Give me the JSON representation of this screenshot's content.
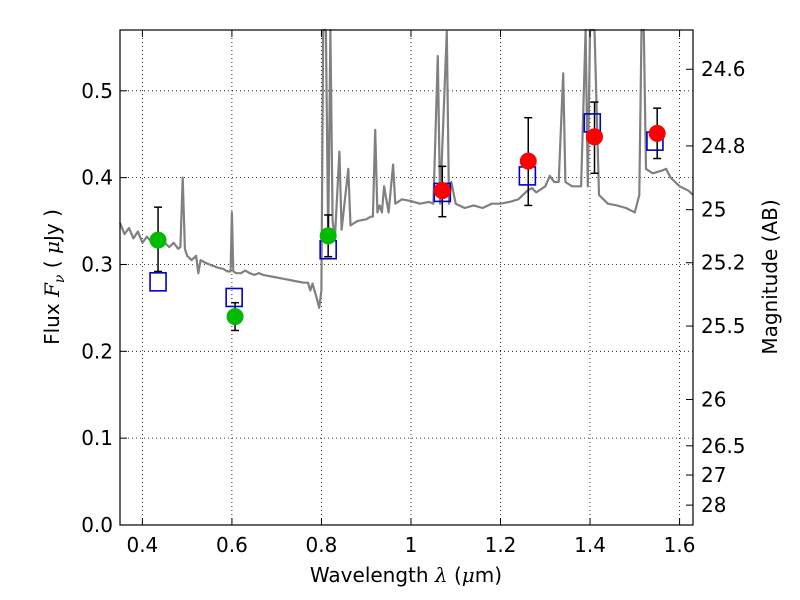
{
  "chart_data": {
    "type": "scatter",
    "xlabel": {
      "prefix": "Wavelength ",
      "symbol": "λ",
      "open": " (",
      "unit_symbol": "μ",
      "unit_rest": "m)"
    },
    "ylabel": {
      "prefix": "Flux ",
      "symbol": "F",
      "sub": "ν",
      "open": " ( ",
      "unit_symbol": "μ",
      "unit_rest": "Jy )"
    },
    "y2label": "Magnitude (AB)",
    "xlim": [
      0.35,
      1.63
    ],
    "ylim": [
      0.0,
      0.57
    ],
    "grid": true,
    "x_ticks": [
      0.4,
      0.6,
      0.8,
      1.0,
      1.2,
      1.4,
      1.6
    ],
    "x_tick_labels": [
      "0.4",
      "0.6",
      "0.8",
      "1",
      "1.2",
      "1.4",
      "1.6"
    ],
    "y_ticks": [
      0.0,
      0.1,
      0.2,
      0.3,
      0.4,
      0.5
    ],
    "y_tick_labels": [
      "0.0",
      "0.1",
      "0.2",
      "0.3",
      "0.4",
      "0.5"
    ],
    "mag_ticks": [
      24.6,
      24.8,
      25,
      25.2,
      25.5,
      26,
      26.5,
      27,
      28
    ],
    "mag_tick_labels": [
      "24.6",
      "24.8",
      "25",
      "25.2",
      "25.5",
      "26",
      "26.5",
      "27",
      "28"
    ],
    "colors": {
      "spectrum": "#808080",
      "model": "#0000cc",
      "green": "#00bb00",
      "red": "#ff0000",
      "errorbar": "#000000"
    },
    "series": [
      {
        "kind": "spectrum",
        "points": [
          [
            0.35,
            0.348
          ],
          [
            0.36,
            0.335
          ],
          [
            0.37,
            0.342
          ],
          [
            0.38,
            0.33
          ],
          [
            0.39,
            0.338
          ],
          [
            0.4,
            0.325
          ],
          [
            0.41,
            0.332
          ],
          [
            0.42,
            0.326
          ],
          [
            0.43,
            0.33
          ],
          [
            0.44,
            0.32
          ],
          [
            0.45,
            0.325
          ],
          [
            0.46,
            0.32
          ],
          [
            0.47,
            0.325
          ],
          [
            0.48,
            0.318
          ],
          [
            0.485,
            0.32
          ],
          [
            0.49,
            0.4
          ],
          [
            0.495,
            0.318
          ],
          [
            0.5,
            0.31
          ],
          [
            0.51,
            0.305
          ],
          [
            0.52,
            0.31
          ],
          [
            0.525,
            0.29
          ],
          [
            0.53,
            0.305
          ],
          [
            0.54,
            0.302
          ],
          [
            0.55,
            0.3
          ],
          [
            0.56,
            0.298
          ],
          [
            0.57,
            0.296
          ],
          [
            0.58,
            0.295
          ],
          [
            0.59,
            0.292
          ],
          [
            0.597,
            0.292
          ],
          [
            0.6,
            0.36
          ],
          [
            0.603,
            0.292
          ],
          [
            0.61,
            0.29
          ],
          [
            0.62,
            0.29
          ],
          [
            0.63,
            0.293
          ],
          [
            0.64,
            0.29
          ],
          [
            0.65,
            0.288
          ],
          [
            0.66,
            0.29
          ],
          [
            0.67,
            0.288
          ],
          [
            0.68,
            0.287
          ],
          [
            0.7,
            0.285
          ],
          [
            0.72,
            0.283
          ],
          [
            0.74,
            0.281
          ],
          [
            0.76,
            0.279
          ],
          [
            0.77,
            0.279
          ],
          [
            0.775,
            0.27
          ],
          [
            0.78,
            0.278
          ],
          [
            0.79,
            0.26
          ],
          [
            0.795,
            0.25
          ],
          [
            0.8,
            0.27
          ],
          [
            0.804,
            0.57
          ],
          [
            0.81,
            0.57
          ],
          [
            0.815,
            0.33
          ],
          [
            0.82,
            0.57
          ],
          [
            0.825,
            0.35
          ],
          [
            0.83,
            0.33
          ],
          [
            0.84,
            0.43
          ],
          [
            0.845,
            0.34
          ],
          [
            0.86,
            0.41
          ],
          [
            0.865,
            0.345
          ],
          [
            0.88,
            0.35
          ],
          [
            0.9,
            0.352
          ],
          [
            0.91,
            0.355
          ],
          [
            0.915,
            0.355
          ],
          [
            0.92,
            0.455
          ],
          [
            0.925,
            0.36
          ],
          [
            0.93,
            0.368
          ],
          [
            0.935,
            0.36
          ],
          [
            0.94,
            0.39
          ],
          [
            0.95,
            0.36
          ],
          [
            0.96,
            0.415
          ],
          [
            0.965,
            0.37
          ],
          [
            0.98,
            0.375
          ],
          [
            1.0,
            0.373
          ],
          [
            1.02,
            0.37
          ],
          [
            1.04,
            0.372
          ],
          [
            1.05,
            0.37
          ],
          [
            1.06,
            0.54
          ],
          [
            1.065,
            0.37
          ],
          [
            1.08,
            0.568
          ],
          [
            1.085,
            0.37
          ],
          [
            1.09,
            0.395
          ],
          [
            1.1,
            0.37
          ],
          [
            1.12,
            0.365
          ],
          [
            1.14,
            0.368
          ],
          [
            1.16,
            0.365
          ],
          [
            1.18,
            0.37
          ],
          [
            1.2,
            0.37
          ],
          [
            1.22,
            0.372
          ],
          [
            1.24,
            0.375
          ],
          [
            1.26,
            0.385
          ],
          [
            1.27,
            0.388
          ],
          [
            1.28,
            0.383
          ],
          [
            1.3,
            0.39
          ],
          [
            1.31,
            0.402
          ],
          [
            1.32,
            0.395
          ],
          [
            1.33,
            0.395
          ],
          [
            1.34,
            0.52
          ],
          [
            1.345,
            0.395
          ],
          [
            1.36,
            0.39
          ],
          [
            1.38,
            0.39
          ],
          [
            1.39,
            0.57
          ],
          [
            1.395,
            0.39
          ],
          [
            1.4,
            0.57
          ],
          [
            1.41,
            0.57
          ],
          [
            1.42,
            0.38
          ],
          [
            1.44,
            0.37
          ],
          [
            1.46,
            0.368
          ],
          [
            1.48,
            0.365
          ],
          [
            1.5,
            0.36
          ],
          [
            1.51,
            0.38
          ],
          [
            1.515,
            0.57
          ],
          [
            1.52,
            0.57
          ],
          [
            1.525,
            0.41
          ],
          [
            1.54,
            0.405
          ],
          [
            1.56,
            0.408
          ],
          [
            1.57,
            0.41
          ],
          [
            1.58,
            0.4
          ],
          [
            1.6,
            0.39
          ],
          [
            1.62,
            0.385
          ],
          [
            1.63,
            0.38
          ]
        ]
      },
      {
        "kind": "model-squares",
        "points": [
          [
            0.435,
            0.28
          ],
          [
            0.605,
            0.262
          ],
          [
            0.815,
            0.317
          ],
          [
            1.07,
            0.383
          ],
          [
            1.26,
            0.402
          ],
          [
            1.405,
            0.463
          ],
          [
            1.545,
            0.442
          ]
        ]
      },
      {
        "kind": "green-points",
        "points": [
          {
            "x": 0.435,
            "y": 0.328,
            "lo": 0.292,
            "hi": 0.366
          },
          {
            "x": 0.607,
            "y": 0.24,
            "lo": 0.224,
            "hi": 0.256
          },
          {
            "x": 0.815,
            "y": 0.333,
            "lo": 0.309,
            "hi": 0.357
          }
        ]
      },
      {
        "kind": "red-points",
        "points": [
          {
            "x": 1.07,
            "y": 0.385,
            "lo": 0.355,
            "hi": 0.413
          },
          {
            "x": 1.262,
            "y": 0.419,
            "lo": 0.368,
            "hi": 0.469
          },
          {
            "x": 1.41,
            "y": 0.447,
            "lo": 0.405,
            "hi": 0.487
          },
          {
            "x": 1.55,
            "y": 0.451,
            "lo": 0.422,
            "hi": 0.48
          }
        ]
      }
    ]
  }
}
